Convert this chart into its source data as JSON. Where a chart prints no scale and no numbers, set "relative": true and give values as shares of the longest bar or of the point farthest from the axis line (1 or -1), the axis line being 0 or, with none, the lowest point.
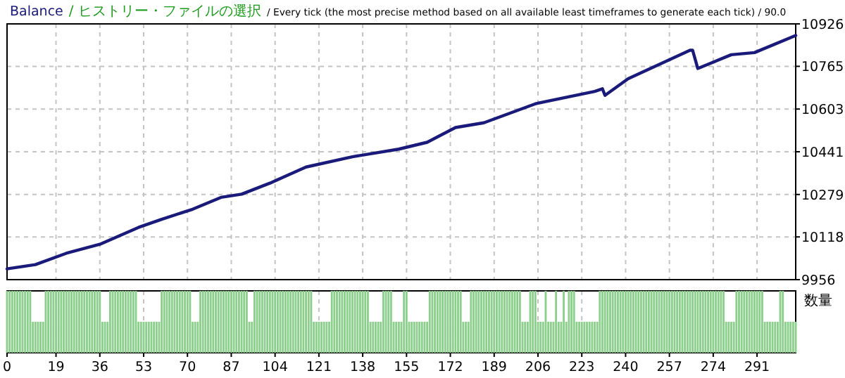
{
  "chart_data": [
    {
      "type": "line",
      "title": "Balance",
      "subtitle": "/ ヒストリー・ファイルの選択",
      "annotations": [
        "/ Every tick (the most precise method based on all available least timeframes to generate each tick) / 90.0"
      ],
      "series": [
        {
          "color": "#1a1a7a",
          "x": [
            0,
            11,
            23,
            36,
            51,
            60,
            72,
            83,
            91,
            102,
            116,
            134,
            152,
            163,
            174,
            185,
            205,
            228,
            231,
            232,
            241,
            265,
            266,
            268,
            281,
            290,
            306
          ],
          "values": [
            9997,
            10013,
            10056,
            10090,
            10154,
            10185,
            10223,
            10268,
            10280,
            10322,
            10383,
            10422,
            10451,
            10477,
            10533,
            10551,
            10623,
            10670,
            10680,
            10655,
            10718,
            10826,
            10826,
            10757,
            10809,
            10817,
            10882
          ]
        }
      ],
      "xlim": [
        0,
        306
      ],
      "xticks": [
        0,
        19,
        36,
        53,
        70,
        87,
        104,
        121,
        138,
        155,
        172,
        189,
        206,
        223,
        240,
        257,
        274,
        291
      ],
      "ylim": [
        9956,
        10926
      ],
      "yticks": [
        9956,
        10118,
        10279,
        10441,
        10603,
        10765,
        10926
      ],
      "tick_labels": "y",
      "grid": true,
      "line_style": "solid"
    },
    {
      "type": "bar",
      "ylabel": "数量",
      "relative": true,
      "color": "#8ccf8c",
      "x": [
        0,
        1,
        2,
        3,
        4,
        5,
        6,
        7,
        8,
        9,
        10,
        11,
        12,
        13,
        14,
        15,
        16,
        17,
        18,
        19,
        20,
        21,
        22,
        23,
        24,
        25,
        26,
        27,
        28,
        29,
        30,
        31,
        32,
        33,
        34,
        35,
        36,
        37,
        38,
        39,
        40,
        41,
        42,
        43,
        44,
        45,
        46,
        47,
        48,
        49,
        50,
        51,
        52,
        53,
        54,
        55,
        56,
        57,
        58,
        59,
        60,
        61,
        62,
        63,
        64,
        65,
        66,
        67,
        68,
        69,
        70,
        71,
        72,
        73,
        74,
        75,
        76,
        77,
        78,
        79,
        80,
        81,
        82,
        83,
        84,
        85,
        86,
        87,
        88,
        89,
        90,
        91,
        92,
        93,
        94,
        95,
        96,
        97,
        98,
        99,
        100,
        101,
        102,
        103,
        104,
        105,
        106,
        107,
        108,
        109,
        110,
        111,
        112,
        113,
        114,
        115,
        116,
        117,
        118,
        119,
        120,
        121,
        122,
        123,
        124,
        125,
        126,
        127,
        128,
        129,
        130,
        131,
        132,
        133,
        134,
        135,
        136,
        137,
        138,
        139,
        140,
        141,
        142,
        143,
        144,
        145,
        146,
        147,
        148,
        149,
        150,
        151,
        152,
        153,
        154,
        155,
        156,
        157,
        158,
        159,
        160,
        161,
        162,
        163,
        164,
        165,
        166,
        167,
        168,
        169,
        170,
        171,
        172,
        173,
        174,
        175,
        176,
        177,
        178,
        179,
        180,
        181,
        182,
        183,
        184,
        185,
        186,
        187,
        188,
        189,
        190,
        191,
        192,
        193,
        194,
        195,
        196,
        197,
        198,
        199,
        200,
        201,
        202,
        203,
        204,
        205,
        206,
        207,
        208,
        209,
        210,
        211,
        212,
        213,
        214,
        215,
        216,
        217,
        218,
        219,
        220,
        221,
        222,
        223,
        224,
        225,
        226,
        227,
        228,
        229,
        230,
        231,
        232,
        233,
        234,
        235,
        236,
        237,
        238,
        239,
        240,
        241,
        242,
        243,
        244,
        245,
        246,
        247,
        248,
        249,
        250,
        251,
        252,
        253,
        254,
        255,
        256,
        257,
        258,
        259,
        260,
        261,
        262,
        263,
        264,
        265,
        266,
        267,
        268,
        269,
        270,
        271,
        272,
        273,
        274,
        275,
        276,
        277,
        278,
        279,
        280,
        281,
        282,
        283,
        284,
        285,
        286,
        287,
        288,
        289,
        290,
        291,
        292,
        293,
        294,
        295,
        296,
        297,
        298,
        299,
        300,
        301,
        302,
        303,
        304,
        305,
        306
      ],
      "values": [
        1,
        1,
        1,
        1,
        1,
        1,
        1,
        1,
        1,
        1,
        0.5,
        0.5,
        0.5,
        0.5,
        0.5,
        1,
        1,
        1,
        1,
        1,
        1,
        1,
        1,
        1,
        1,
        1,
        1,
        1,
        1,
        1,
        1,
        1,
        1,
        1,
        1,
        1,
        1,
        0.5,
        0.5,
        0.5,
        1,
        1,
        1,
        1,
        1,
        1,
        1,
        1,
        1,
        1,
        1,
        0.5,
        0.5,
        0.5,
        0.5,
        0.5,
        0.5,
        0.5,
        0.5,
        0.5,
        1,
        1,
        1,
        1,
        1,
        1,
        1,
        1,
        1,
        1,
        1,
        1,
        0.5,
        0.5,
        0.5,
        1,
        1,
        1,
        1,
        1,
        1,
        1,
        1,
        1,
        1,
        1,
        1,
        1,
        1,
        1,
        1,
        1,
        1,
        1,
        0.5,
        0.5,
        1,
        1,
        1,
        1,
        1,
        1,
        1,
        1,
        1,
        1,
        1,
        1,
        1,
        1,
        1,
        1,
        1,
        1,
        1,
        1,
        1,
        1,
        1,
        0.5,
        0.5,
        0.5,
        0.5,
        0.5,
        0.5,
        0.5,
        1,
        1,
        1,
        1,
        1,
        1,
        1,
        1,
        1,
        1,
        1,
        1,
        1,
        1,
        1,
        0.5,
        0.5,
        0.5,
        0.5,
        0.5,
        1,
        1,
        1,
        1,
        0.5,
        0.5,
        0.5,
        0.5,
        1,
        1,
        0.5,
        0.5,
        0.5,
        0.5,
        0.5,
        0.5,
        0.5,
        0.5,
        1,
        1,
        1,
        1,
        1,
        1,
        1,
        1,
        1,
        1,
        1,
        1,
        1,
        0.5,
        0.5,
        0.5,
        1,
        1,
        1,
        1,
        1,
        1,
        1,
        1,
        1,
        1,
        1,
        1,
        1,
        1,
        1,
        1,
        1,
        1,
        1,
        1,
        0.5,
        0.5,
        0.5,
        1,
        1,
        1,
        0.5,
        0.5,
        0.5,
        1,
        0.5,
        0.5,
        0.5,
        1,
        0.5,
        0.5,
        1,
        0.5,
        1,
        1,
        1,
        0.5,
        0.5,
        0.5,
        0.5,
        0.5,
        0.5,
        0.5,
        0.5,
        0.5,
        1,
        1,
        1,
        1,
        1,
        1,
        1,
        1,
        1,
        1,
        1,
        1,
        1,
        1,
        1,
        1,
        1,
        1,
        1,
        1,
        1,
        1,
        1,
        1,
        1,
        1,
        1,
        1,
        1,
        1,
        1,
        1,
        1,
        1,
        1,
        1,
        1,
        1,
        1,
        1,
        1,
        1,
        1,
        1,
        1,
        1,
        1,
        1,
        1,
        0.5,
        0.5,
        0.5,
        0.5,
        1,
        1,
        1,
        1,
        1,
        1,
        1,
        1,
        1,
        1,
        1,
        0.5,
        0.5,
        0.5,
        0.5,
        0.5,
        0.5,
        1,
        1,
        0.5,
        0.5,
        0.5,
        0.5,
        0.5
      ],
      "xlim": [
        0,
        306
      ],
      "xticks": [
        0,
        19,
        36,
        53,
        70,
        87,
        104,
        121,
        138,
        155,
        172,
        189,
        206,
        223,
        240,
        257,
        274,
        291
      ],
      "tick_labels": "x",
      "grid": "x"
    }
  ]
}
